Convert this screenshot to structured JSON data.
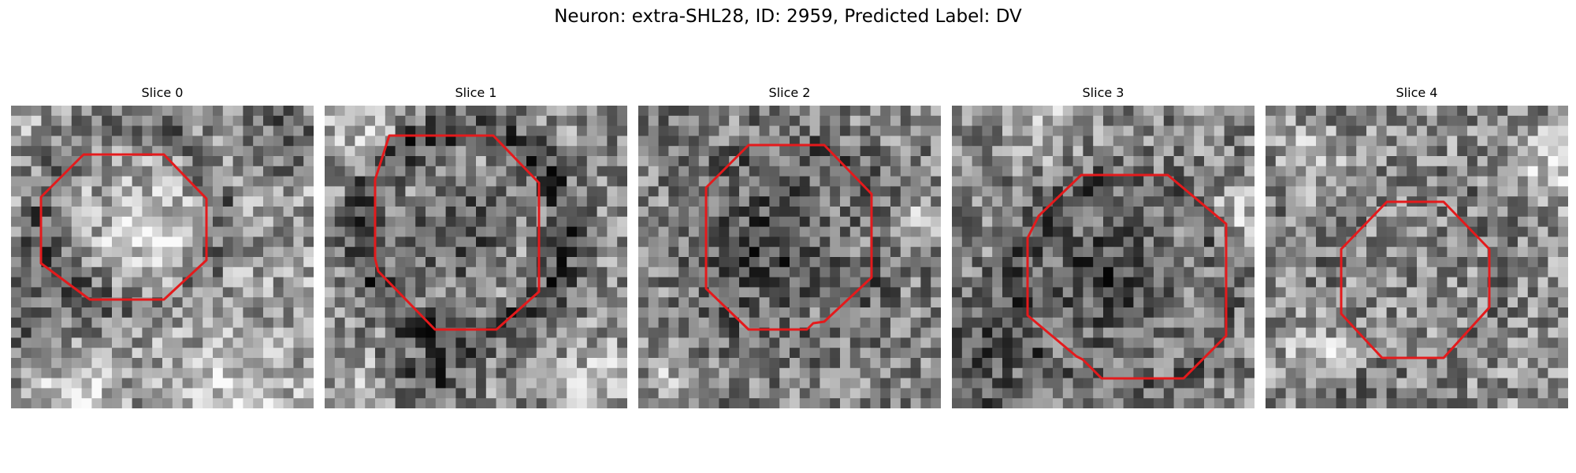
{
  "figure": {
    "title": "Neuron: extra-SHL28, ID: 2959, Predicted Label: DV",
    "outline_color": "#e41a1c",
    "colormap": "grayscale"
  },
  "slices": [
    {
      "title": "Slice 0",
      "image": "grayscale-microscopy-patch",
      "outline": "octagon-roi-outline"
    },
    {
      "title": "Slice 1",
      "image": "grayscale-microscopy-patch",
      "outline": "octagon-roi-outline"
    },
    {
      "title": "Slice 2",
      "image": "grayscale-microscopy-patch",
      "outline": "octagon-roi-outline"
    },
    {
      "title": "Slice 3",
      "image": "grayscale-microscopy-patch",
      "outline": "octagon-roi-outline"
    },
    {
      "title": "Slice 4",
      "image": "grayscale-microscopy-patch",
      "outline": "octagon-roi-outline"
    }
  ]
}
